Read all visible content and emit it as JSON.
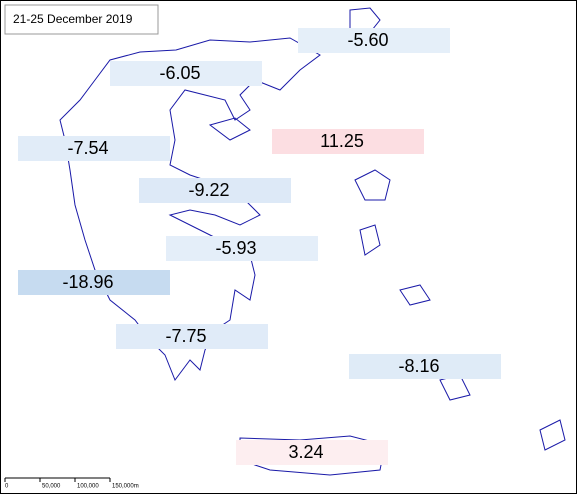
{
  "title": "21-25 December 2019",
  "regions": [
    {
      "label": "-5.60"
    },
    {
      "label": "-6.05"
    },
    {
      "label": "-7.54"
    },
    {
      "label": "11.25"
    },
    {
      "label": "-9.22"
    },
    {
      "label": "-5.93"
    },
    {
      "label": "-18.96"
    },
    {
      "label": "-7.75"
    },
    {
      "label": "-8.16"
    },
    {
      "label": "3.24"
    }
  ],
  "scale_bar": {
    "labels": [
      "0",
      "50,000",
      "100,000",
      "150,000m"
    ]
  }
}
